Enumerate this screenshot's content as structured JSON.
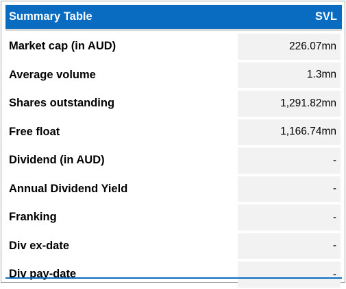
{
  "header": {
    "title": "Summary Table",
    "ticker": "SVL"
  },
  "rows": [
    {
      "label": "Market cap (in AUD)",
      "value": "226.07mn"
    },
    {
      "label": "Average volume",
      "value": "1.3mn"
    },
    {
      "label": "Shares outstanding",
      "value": "1,291.82mn"
    },
    {
      "label": "Free float",
      "value": "1,166.74mn"
    },
    {
      "label": "Dividend (in AUD)",
      "value": "-"
    },
    {
      "label": "Annual Dividend Yield",
      "value": "-"
    },
    {
      "label": "Franking",
      "value": "-"
    },
    {
      "label": "Div ex-date",
      "value": "-"
    },
    {
      "label": "Div pay-date",
      "value": "-"
    }
  ],
  "colors": {
    "header_bg": "#0a6cc0",
    "value_bg": "#f2f2f2"
  }
}
